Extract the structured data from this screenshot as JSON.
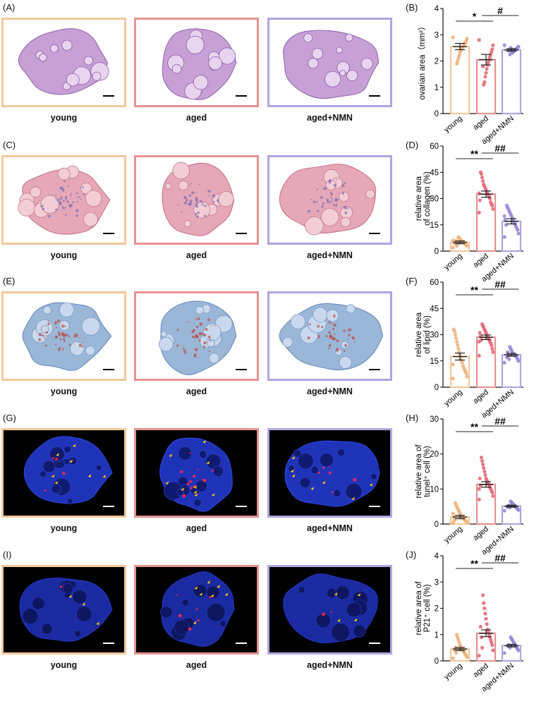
{
  "colors": {
    "young": "#f2c89c",
    "aged": "#e49393",
    "nmn": "#b1a5e0",
    "young_point": "#f0b27e",
    "aged_point": "#e36a79",
    "nmn_point": "#9b89d8"
  },
  "groups": [
    "young",
    "aged",
    "aged+NMN"
  ],
  "rows": [
    {
      "image_label": "(A)",
      "stain": "he",
      "captions": [
        "young",
        "aged",
        "aged+NMN"
      ],
      "chart_label": "(B)",
      "chart_data": {
        "type": "bar",
        "categories": [
          "young",
          "aged",
          "aged+NMN"
        ],
        "values": [
          2.55,
          2.05,
          2.42
        ],
        "errors": [
          0.12,
          0.2,
          0.05
        ],
        "ylabel": [
          "ovarian area（mm²）"
        ],
        "ylim": [
          0,
          4
        ],
        "yticks": [
          0,
          1,
          2,
          3,
          4
        ],
        "sig": [
          {
            "from": 0,
            "to": 1,
            "text": "*"
          },
          {
            "from": 1,
            "to": 2,
            "text": "#"
          }
        ],
        "points": [
          [
            2.9,
            2.85,
            2.75,
            2.7,
            2.65,
            2.6,
            2.55,
            2.5,
            2.45,
            2.4,
            2.3,
            2.2,
            2.1,
            2.0,
            1.9
          ],
          [
            2.8,
            2.6,
            2.45,
            2.35,
            2.25,
            2.15,
            2.05,
            1.95,
            1.85,
            1.7,
            1.55,
            1.4,
            1.2,
            1.1,
            1.8
          ],
          [
            2.6,
            2.55,
            2.5,
            2.48,
            2.45,
            2.42,
            2.4,
            2.38,
            2.35,
            2.3,
            2.45,
            2.5,
            2.25,
            2.4
          ]
        ]
      }
    },
    {
      "image_label": "(C)",
      "stain": "masson",
      "captions": [
        "young",
        "aged",
        "aged+NMN"
      ],
      "chart_label": "(D)",
      "chart_data": {
        "type": "bar",
        "categories": [
          "young",
          "aged",
          "aged+NMN"
        ],
        "values": [
          5,
          32.5,
          17
        ],
        "errors": [
          0.8,
          1.8,
          1.5
        ],
        "ylabel": [
          "relative area",
          "of collagen (%)"
        ],
        "ylim": [
          0,
          60
        ],
        "yticks": [
          0,
          15,
          30,
          45,
          60
        ],
        "sig": [
          {
            "from": 0,
            "to": 1,
            "text": "**"
          },
          {
            "from": 1,
            "to": 2,
            "text": "##"
          }
        ],
        "points": [
          [
            2,
            3,
            3.5,
            4,
            4.5,
            5,
            5,
            5.5,
            6,
            6.5,
            7,
            7.5,
            8,
            4,
            3,
            6,
            5,
            4.5,
            5.5,
            6
          ],
          [
            22,
            24,
            26,
            27,
            28,
            30,
            31,
            32,
            33,
            34,
            35,
            36,
            37,
            38,
            40,
            42,
            44,
            45,
            29,
            33
          ],
          [
            8,
            10,
            12,
            13,
            14,
            15,
            16,
            17,
            18,
            19,
            20,
            21,
            22,
            23,
            24,
            25,
            26,
            15,
            18,
            20
          ]
        ]
      }
    },
    {
      "image_label": "(E)",
      "stain": "oil",
      "captions": [
        "young",
        "aged",
        "aged+NMN"
      ],
      "chart_label": "(F)",
      "chart_data": {
        "type": "bar",
        "categories": [
          "young",
          "aged",
          "aged+NMN"
        ],
        "values": [
          17.5,
          28.5,
          18.5
        ],
        "errors": [
          2,
          1.3,
          0.8
        ],
        "ylabel": [
          "relative area",
          "of lipid (%)"
        ],
        "ylim": [
          0,
          60
        ],
        "yticks": [
          0,
          15,
          30,
          45,
          60
        ],
        "sig": [
          {
            "from": 0,
            "to": 1,
            "text": "**"
          },
          {
            "from": 1,
            "to": 2,
            "text": "##"
          }
        ],
        "points": [
          [
            5,
            6,
            8,
            9,
            10,
            11,
            12,
            14,
            15,
            16,
            18,
            20,
            22,
            24,
            26,
            28,
            30,
            32,
            33,
            13
          ],
          [
            18,
            20,
            22,
            24,
            25,
            26,
            27,
            28,
            29,
            30,
            31,
            32,
            33,
            34,
            35,
            36,
            27,
            29,
            31,
            26
          ],
          [
            14,
            15,
            16,
            17,
            17.5,
            18,
            18.5,
            19,
            19.5,
            20,
            21,
            22,
            23,
            16,
            18,
            20,
            17
          ]
        ]
      }
    },
    {
      "image_label": "(G)",
      "stain": "tunel",
      "captions": [
        "young",
        "aged",
        "aged+NMN"
      ],
      "chart_label": "(H)",
      "chart_data": {
        "type": "bar",
        "categories": [
          "young",
          "aged",
          "aged+NMN"
        ],
        "values": [
          2,
          11.3,
          5.1
        ],
        "errors": [
          0.5,
          0.8,
          0.3
        ],
        "ylabel": [
          "relative area of",
          "tunel⁺ cell (%)"
        ],
        "ylim": [
          0,
          30
        ],
        "yticks": [
          0,
          10,
          20,
          30
        ],
        "sig": [
          {
            "from": 0,
            "to": 1,
            "text": "**"
          },
          {
            "from": 1,
            "to": 2,
            "text": "##"
          }
        ],
        "points": [
          [
            0.3,
            0.5,
            0.8,
            1,
            1.2,
            1.5,
            1.8,
            2,
            2.2,
            2.5,
            3,
            3.5,
            4,
            4.5,
            5,
            5.5,
            6,
            1,
            2,
            3
          ],
          [
            7,
            8,
            9,
            9.5,
            10,
            10.5,
            11,
            11.5,
            12,
            12.5,
            13,
            14,
            15,
            16,
            17,
            18,
            19,
            11,
            13,
            10
          ],
          [
            3.8,
            4,
            4.3,
            4.5,
            4.8,
            5,
            5.2,
            5.5,
            5.8,
            6,
            6.2,
            6.5,
            4.7,
            5.3,
            5.1,
            4.9
          ]
        ]
      }
    },
    {
      "image_label": "(I)",
      "stain": "p21",
      "captions": [
        "young",
        "aged",
        "aged+NMN"
      ],
      "chart_label": "(J)",
      "chart_data": {
        "type": "bar",
        "categories": [
          "young",
          "aged",
          "aged+NMN"
        ],
        "values": [
          0.45,
          1.05,
          0.58
        ],
        "errors": [
          0.06,
          0.13,
          0.05
        ],
        "ylabel": [
          "relative area of",
          "P21⁺ cell (%)"
        ],
        "ylim": [
          0,
          4
        ],
        "yticks": [
          0,
          1,
          2,
          3,
          4
        ],
        "sig": [
          {
            "from": 0,
            "to": 1,
            "text": "**"
          },
          {
            "from": 1,
            "to": 2,
            "text": "##"
          }
        ],
        "points": [
          [
            0.1,
            0.15,
            0.2,
            0.25,
            0.3,
            0.35,
            0.4,
            0.45,
            0.5,
            0.55,
            0.6,
            0.7,
            0.8,
            0.9,
            1.0,
            0.3,
            0.5,
            0.4
          ],
          [
            0.2,
            0.4,
            0.6,
            0.7,
            0.8,
            0.9,
            1.0,
            1.1,
            1.2,
            1.4,
            1.6,
            1.8,
            2.0,
            2.2,
            2.5,
            0.5,
            0.9,
            1.3
          ],
          [
            0.3,
            0.4,
            0.45,
            0.5,
            0.55,
            0.6,
            0.65,
            0.7,
            0.75,
            0.8,
            0.85,
            0.9,
            0.5,
            0.6
          ]
        ]
      }
    }
  ]
}
